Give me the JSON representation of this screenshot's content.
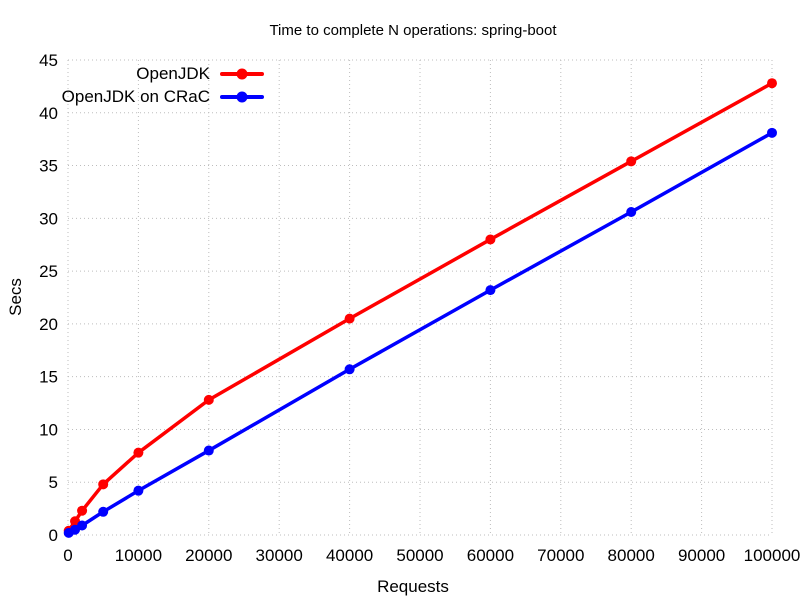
{
  "chart_data": {
    "type": "line",
    "title": "Time to complete N operations: spring-boot",
    "xlabel": "Requests",
    "ylabel": "Secs",
    "x": [
      100,
      1000,
      2000,
      5000,
      10000,
      20000,
      40000,
      60000,
      80000,
      100000
    ],
    "series": [
      {
        "name": "OpenJDK",
        "color": "#ff0000",
        "marker": "circle",
        "values": [
          0.4,
          1.3,
          2.3,
          4.8,
          7.8,
          12.8,
          20.5,
          28.0,
          35.4,
          42.8
        ]
      },
      {
        "name": "OpenJDK on CRaC",
        "color": "#0000ff",
        "marker": "circle",
        "values": [
          0.2,
          0.5,
          0.9,
          2.2,
          4.2,
          8.0,
          15.7,
          23.2,
          30.6,
          38.1
        ]
      }
    ],
    "xlim": [
      0,
      100000
    ],
    "ylim": [
      0,
      45
    ],
    "xticks": [
      0,
      10000,
      20000,
      30000,
      40000,
      50000,
      60000,
      70000,
      80000,
      90000,
      100000
    ],
    "yticks": [
      0,
      5,
      10,
      15,
      20,
      25,
      30,
      35,
      40,
      45
    ],
    "grid": true,
    "grid_style": "dotted",
    "grid_color": "#bdbdbd",
    "background_color": "#ffffff",
    "text_color": "#000000",
    "legend_position": "upper-left"
  }
}
